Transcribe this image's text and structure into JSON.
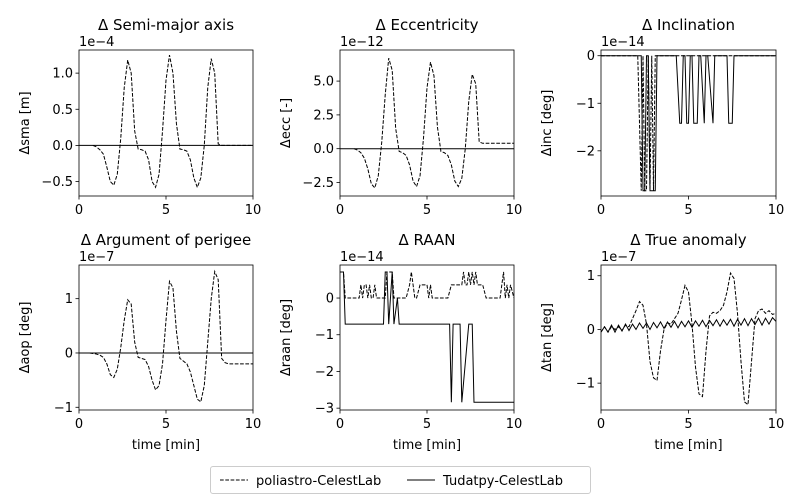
{
  "legend": {
    "entries": [
      {
        "label": "poliastro-CelestLab",
        "style": "dashed"
      },
      {
        "label": "Tudatpy-CelestLab",
        "style": "solid"
      }
    ]
  },
  "chart_data": [
    {
      "type": "line",
      "title": "Δ Semi-major axis",
      "ylabel": "Δsma [m]",
      "xlabel": "",
      "offset_text": "1e−4",
      "xlim": [
        0,
        10
      ],
      "ylim": [
        -0.7,
        1.32
      ],
      "xticks": [
        0,
        5,
        10
      ],
      "xtick_labels": [
        "0",
        "5",
        "10"
      ],
      "yticks": [
        -0.5,
        0,
        0.5,
        1.0
      ],
      "ytick_labels": [
        "−0.5",
        "0.0",
        "0.5",
        "1.0"
      ],
      "series": [
        {
          "name": "poliastro-CelestLab",
          "style": "dashed",
          "x": [
            0.8,
            1.0,
            1.2,
            1.4,
            1.6,
            1.8,
            2.0,
            2.2,
            2.4,
            2.6,
            2.8,
            3.0,
            3.2,
            3.4,
            3.6,
            3.8,
            4.0,
            4.2,
            4.4,
            4.6,
            4.8,
            5.0,
            5.2,
            5.4,
            5.6,
            5.8,
            6.0,
            6.2,
            6.4,
            6.6,
            6.8,
            7.0,
            7.2,
            7.4,
            7.6,
            7.8,
            8.0,
            8.2,
            8.4,
            8.6,
            8.8,
            9.0,
            10.0
          ],
          "y": [
            0,
            -0.02,
            -0.06,
            -0.12,
            -0.3,
            -0.5,
            -0.55,
            -0.4,
            0.1,
            0.8,
            1.18,
            1.0,
            0.2,
            -0.05,
            -0.06,
            -0.08,
            -0.2,
            -0.5,
            -0.58,
            -0.4,
            0.2,
            0.9,
            1.25,
            1.0,
            0.3,
            -0.05,
            -0.06,
            -0.08,
            -0.2,
            -0.45,
            -0.58,
            -0.45,
            0.0,
            0.8,
            1.2,
            1.0,
            0.02,
            0,
            0,
            0,
            0,
            0,
            0
          ]
        },
        {
          "name": "Tudatpy-CelestLab",
          "style": "solid",
          "x": [
            0,
            10
          ],
          "y": [
            0,
            0
          ]
        }
      ]
    },
    {
      "type": "line",
      "title": "Δ Eccentricity",
      "ylabel": "Δecc [-]",
      "xlabel": "",
      "offset_text": "1e−12",
      "xlim": [
        0,
        10
      ],
      "ylim": [
        -3.5,
        7.3
      ],
      "xticks": [
        0,
        5,
        10
      ],
      "xtick_labels": [
        "0",
        "5",
        "10"
      ],
      "yticks": [
        -2.5,
        0,
        2.5,
        5.0
      ],
      "ytick_labels": [
        "−2.5",
        "0.0",
        "2.5",
        "5.0"
      ],
      "series": [
        {
          "name": "poliastro-CelestLab",
          "style": "dashed",
          "x": [
            0.8,
            1.0,
            1.2,
            1.4,
            1.6,
            1.8,
            2.0,
            2.2,
            2.4,
            2.6,
            2.8,
            3.0,
            3.2,
            3.4,
            3.6,
            3.8,
            4.0,
            4.2,
            4.4,
            4.6,
            4.8,
            5.0,
            5.2,
            5.4,
            5.6,
            5.8,
            6.0,
            6.2,
            6.4,
            6.6,
            6.8,
            7.0,
            7.2,
            7.4,
            7.6,
            7.8,
            8.0,
            8.2,
            8.4,
            8.6,
            8.8,
            9.0,
            10.0
          ],
          "y": [
            0,
            -0.1,
            -0.3,
            -0.7,
            -1.5,
            -2.6,
            -2.9,
            -2.0,
            0.5,
            4.0,
            6.7,
            5.8,
            1.5,
            -0.2,
            -0.3,
            -0.5,
            -1.2,
            -2.4,
            -2.8,
            -2.0,
            0.8,
            4.5,
            6.4,
            5.4,
            1.6,
            -0.2,
            -0.3,
            -0.5,
            -1.2,
            -2.4,
            -2.8,
            -2.2,
            0.0,
            3.5,
            5.5,
            4.8,
            0.5,
            0.4,
            0.4,
            0.4,
            0.4,
            0.4,
            0.4
          ]
        },
        {
          "name": "Tudatpy-CelestLab",
          "style": "solid",
          "x": [
            0,
            10
          ],
          "y": [
            0,
            0
          ]
        }
      ]
    },
    {
      "type": "line",
      "title": "Δ Inclination",
      "ylabel": "Δinc [deg]",
      "xlabel": "",
      "offset_text": "1e−14",
      "xlim": [
        0,
        10
      ],
      "ylim": [
        -2.95,
        0.12
      ],
      "xticks": [
        0,
        5,
        10
      ],
      "xtick_labels": [
        "0",
        "5",
        "10"
      ],
      "yticks": [
        -2,
        -1,
        0
      ],
      "ytick_labels": [
        "−2",
        "−1",
        "0"
      ],
      "series": [
        {
          "name": "poliastro-CelestLab",
          "style": "dashed",
          "x": [
            0,
            2.0,
            2.1,
            2.3,
            2.4,
            2.5,
            2.6,
            2.7,
            2.8,
            2.9,
            3.0,
            3.1,
            3.2,
            3.3,
            10
          ],
          "y": [
            0,
            0,
            0,
            -2.84,
            0,
            -2.84,
            -2.84,
            0,
            -2.84,
            0,
            -2.84,
            0,
            0,
            0,
            0
          ]
        },
        {
          "name": "Tudatpy-CelestLab",
          "style": "solid",
          "x": [
            0,
            2.3,
            2.4,
            2.5,
            2.6,
            2.7,
            2.8,
            3.1,
            3.2,
            3.3,
            4.3,
            4.5,
            4.6,
            4.7,
            4.8,
            4.9,
            5.0,
            5.1,
            5.2,
            5.3,
            5.5,
            5.6,
            5.7,
            5.9,
            6.0,
            6.1,
            6.4,
            6.5,
            6.6,
            7.2,
            7.3,
            7.5,
            7.6,
            10
          ],
          "y": [
            0,
            0,
            -2.84,
            -2.84,
            0,
            0,
            -2.84,
            -2.84,
            0,
            0,
            0,
            -1.42,
            -1.42,
            0,
            0,
            -1.42,
            -1.42,
            0,
            0,
            -1.42,
            -1.42,
            0,
            0,
            -1.42,
            0,
            0,
            -1.42,
            0,
            0,
            0,
            -1.42,
            -1.42,
            0,
            0
          ]
        }
      ]
    },
    {
      "type": "line",
      "title": "Δ Argument of perigee",
      "ylabel": "Δaop [deg]",
      "xlabel": "time [min]",
      "offset_text": "1e−7",
      "xlim": [
        0,
        10
      ],
      "ylim": [
        -1.05,
        1.62
      ],
      "xticks": [
        0,
        5,
        10
      ],
      "xtick_labels": [
        "0",
        "5",
        "10"
      ],
      "yticks": [
        -1,
        0,
        1
      ],
      "ytick_labels": [
        "−1",
        "0",
        "1"
      ],
      "series": [
        {
          "name": "poliastro-CelestLab",
          "style": "dashed",
          "x": [
            0,
            0.6,
            0.8,
            1.0,
            1.2,
            1.4,
            1.6,
            1.8,
            2.0,
            2.2,
            2.4,
            2.6,
            2.8,
            3.0,
            3.2,
            3.4,
            3.6,
            3.8,
            4.0,
            4.2,
            4.4,
            4.6,
            4.8,
            5.0,
            5.2,
            5.4,
            5.6,
            5.8,
            6.0,
            6.2,
            6.4,
            6.6,
            6.8,
            7.0,
            7.2,
            7.4,
            7.6,
            7.8,
            8.0,
            8.2,
            8.4,
            8.6,
            8.8,
            9.0,
            10.0
          ],
          "y": [
            0,
            0,
            -0.01,
            -0.02,
            -0.04,
            -0.08,
            -0.2,
            -0.4,
            -0.45,
            -0.3,
            0.1,
            0.6,
            0.98,
            0.9,
            0.2,
            -0.08,
            -0.1,
            -0.12,
            -0.25,
            -0.5,
            -0.68,
            -0.6,
            -0.2,
            0.6,
            1.32,
            1.2,
            0.4,
            -0.1,
            -0.15,
            -0.2,
            -0.35,
            -0.6,
            -0.85,
            -0.9,
            -0.6,
            0.2,
            1.0,
            1.5,
            1.35,
            -0.1,
            -0.18,
            -0.2,
            -0.2,
            -0.2,
            -0.2
          ]
        },
        {
          "name": "Tudatpy-CelestLab",
          "style": "solid",
          "x": [
            0,
            10
          ],
          "y": [
            0,
            0
          ]
        }
      ]
    },
    {
      "type": "line",
      "title": "Δ RAAN",
      "ylabel": "Δraan [deg]",
      "xlabel": "time [min]",
      "offset_text": "1e−14",
      "xlim": [
        0,
        10
      ],
      "ylim": [
        -3.05,
        0.9
      ],
      "xticks": [
        0,
        5,
        10
      ],
      "xtick_labels": [
        "0",
        "5",
        "10"
      ],
      "yticks": [
        -3,
        -2,
        -1,
        0
      ],
      "ytick_labels": [
        "−3",
        "−2",
        "−1",
        "0"
      ],
      "series": [
        {
          "name": "poliastro-CelestLab",
          "style": "dashed",
          "x": [
            0,
            0.2,
            0.3,
            1.1,
            1.2,
            1.3,
            1.4,
            1.5,
            1.6,
            1.7,
            1.8,
            1.9,
            2.0,
            2.1,
            2.2,
            2.6,
            2.7,
            3.0,
            3.1,
            3.2,
            3.3,
            3.4,
            3.6,
            3.8,
            4.0,
            4.1,
            4.2,
            4.3,
            4.4,
            4.6,
            4.8,
            5.0,
            5.1,
            5.2,
            5.3,
            5.4,
            5.6,
            5.8,
            6.0,
            6.2,
            6.4,
            6.6,
            7.0,
            7.1,
            7.2,
            7.3,
            7.4,
            7.5,
            7.6,
            7.7,
            7.8,
            7.9,
            8.0,
            8.2,
            8.4,
            8.6,
            8.8,
            9.0,
            9.2,
            9.3,
            9.4,
            9.5,
            9.6,
            9.7,
            9.8,
            10.0
          ],
          "y": [
            0.71,
            0.71,
            0,
            0,
            0.36,
            0,
            0.36,
            0.36,
            0,
            0.36,
            0,
            0,
            0.36,
            0,
            0,
            0,
            0.71,
            0.71,
            0,
            0,
            0,
            0,
            0,
            0,
            0.36,
            0.71,
            0.36,
            0,
            0,
            0.36,
            0.36,
            0.36,
            0,
            0.36,
            0,
            0,
            0,
            0,
            0,
            0,
            0.36,
            0.36,
            0.36,
            0.71,
            0.36,
            0.36,
            0.71,
            0.36,
            0.71,
            0.36,
            0.71,
            0.36,
            0.36,
            0.36,
            0,
            0,
            0,
            0,
            0,
            0.36,
            0.71,
            0,
            0.36,
            0,
            0.36,
            0
          ]
        },
        {
          "name": "Tudatpy-CelestLab",
          "style": "solid",
          "x": [
            0,
            0.2,
            0.3,
            2.5,
            2.6,
            2.7,
            2.8,
            3.0,
            3.1,
            3.3,
            3.4,
            6.3,
            6.4,
            6.5,
            6.8,
            6.9,
            7.0,
            7.4,
            7.5,
            7.6,
            7.7,
            7.8,
            7.9,
            10
          ],
          "y": [
            0.71,
            0.71,
            -0.71,
            -0.71,
            0.71,
            0.71,
            -0.71,
            0.71,
            -0.71,
            0,
            -0.71,
            -0.71,
            -2.84,
            -0.71,
            -0.71,
            -0.71,
            -2.84,
            -0.71,
            -0.71,
            -0.71,
            -2.84,
            -2.84,
            -2.84,
            -2.84
          ]
        }
      ]
    },
    {
      "type": "line",
      "title": "Δ True anomaly",
      "ylabel": "Δtan [deg]",
      "xlabel": "time [min]",
      "offset_text": "1e−7",
      "xlim": [
        0,
        10
      ],
      "ylim": [
        -1.5,
        1.2
      ],
      "xticks": [
        0,
        5,
        10
      ],
      "xtick_labels": [
        "0",
        "5",
        "10"
      ],
      "yticks": [
        -1,
        0,
        1
      ],
      "ytick_labels": [
        "−1",
        "0",
        "1"
      ],
      "series": [
        {
          "name": "poliastro-CelestLab",
          "style": "dashed",
          "x": [
            0,
            0.2,
            0.4,
            0.6,
            0.8,
            1.0,
            1.2,
            1.4,
            1.6,
            1.8,
            2.0,
            2.2,
            2.4,
            2.6,
            2.8,
            3.0,
            3.2,
            3.4,
            3.6,
            3.8,
            4.0,
            4.2,
            4.4,
            4.6,
            4.8,
            5.0,
            5.2,
            5.4,
            5.6,
            5.8,
            6.0,
            6.2,
            6.4,
            6.6,
            6.8,
            7.0,
            7.2,
            7.4,
            7.6,
            7.8,
            8.0,
            8.2,
            8.4,
            8.6,
            8.8,
            9.0,
            9.2,
            9.4,
            9.6,
            9.8,
            10.0
          ],
          "y": [
            -0.05,
            0.05,
            -0.05,
            0.05,
            0,
            0.05,
            -0.02,
            0.08,
            0.05,
            0.2,
            0.35,
            0.52,
            0.45,
            0.1,
            -0.6,
            -0.9,
            -0.95,
            -0.4,
            0.0,
            0.12,
            0.1,
            0.2,
            0.3,
            0.55,
            0.82,
            0.7,
            0.1,
            -0.7,
            -1.2,
            -1.25,
            -0.4,
            0.25,
            0.32,
            0.3,
            0.35,
            0.45,
            0.7,
            1.05,
            0.95,
            0.3,
            -0.6,
            -1.35,
            -1.4,
            -0.6,
            0.2,
            0.35,
            0.38,
            0.3,
            0.35,
            0.28,
            0.3
          ]
        },
        {
          "name": "Tudatpy-CelestLab",
          "style": "solid",
          "x": [
            0,
            0.2,
            0.4,
            0.6,
            0.8,
            1.0,
            1.2,
            1.4,
            1.6,
            1.8,
            2.0,
            2.2,
            2.4,
            2.6,
            2.8,
            3.0,
            3.2,
            3.4,
            3.6,
            3.8,
            4.0,
            4.2,
            4.4,
            4.6,
            4.8,
            5.0,
            5.2,
            5.4,
            5.6,
            5.8,
            6.0,
            6.2,
            6.4,
            6.6,
            6.8,
            7.0,
            7.2,
            7.4,
            7.6,
            7.8,
            8.0,
            8.2,
            8.4,
            8.6,
            8.8,
            9.0,
            9.2,
            9.4,
            9.6,
            9.8,
            10.0
          ],
          "y": [
            -0.05,
            0.05,
            -0.05,
            0.08,
            -0.05,
            0.08,
            -0.03,
            0.1,
            -0.02,
            0.1,
            0.0,
            0.12,
            0.02,
            0.12,
            0.0,
            0.13,
            0.03,
            0.14,
            0.02,
            0.14,
            0.04,
            0.15,
            0.03,
            0.15,
            0.05,
            0.16,
            0.04,
            0.16,
            0.06,
            0.17,
            0.05,
            0.17,
            0.07,
            0.18,
            0.06,
            0.18,
            0.08,
            0.19,
            0.06,
            0.19,
            0.08,
            0.2,
            0.07,
            0.2,
            0.09,
            0.21,
            0.08,
            0.21,
            0.1,
            0.22,
            0.15
          ]
        }
      ]
    }
  ]
}
